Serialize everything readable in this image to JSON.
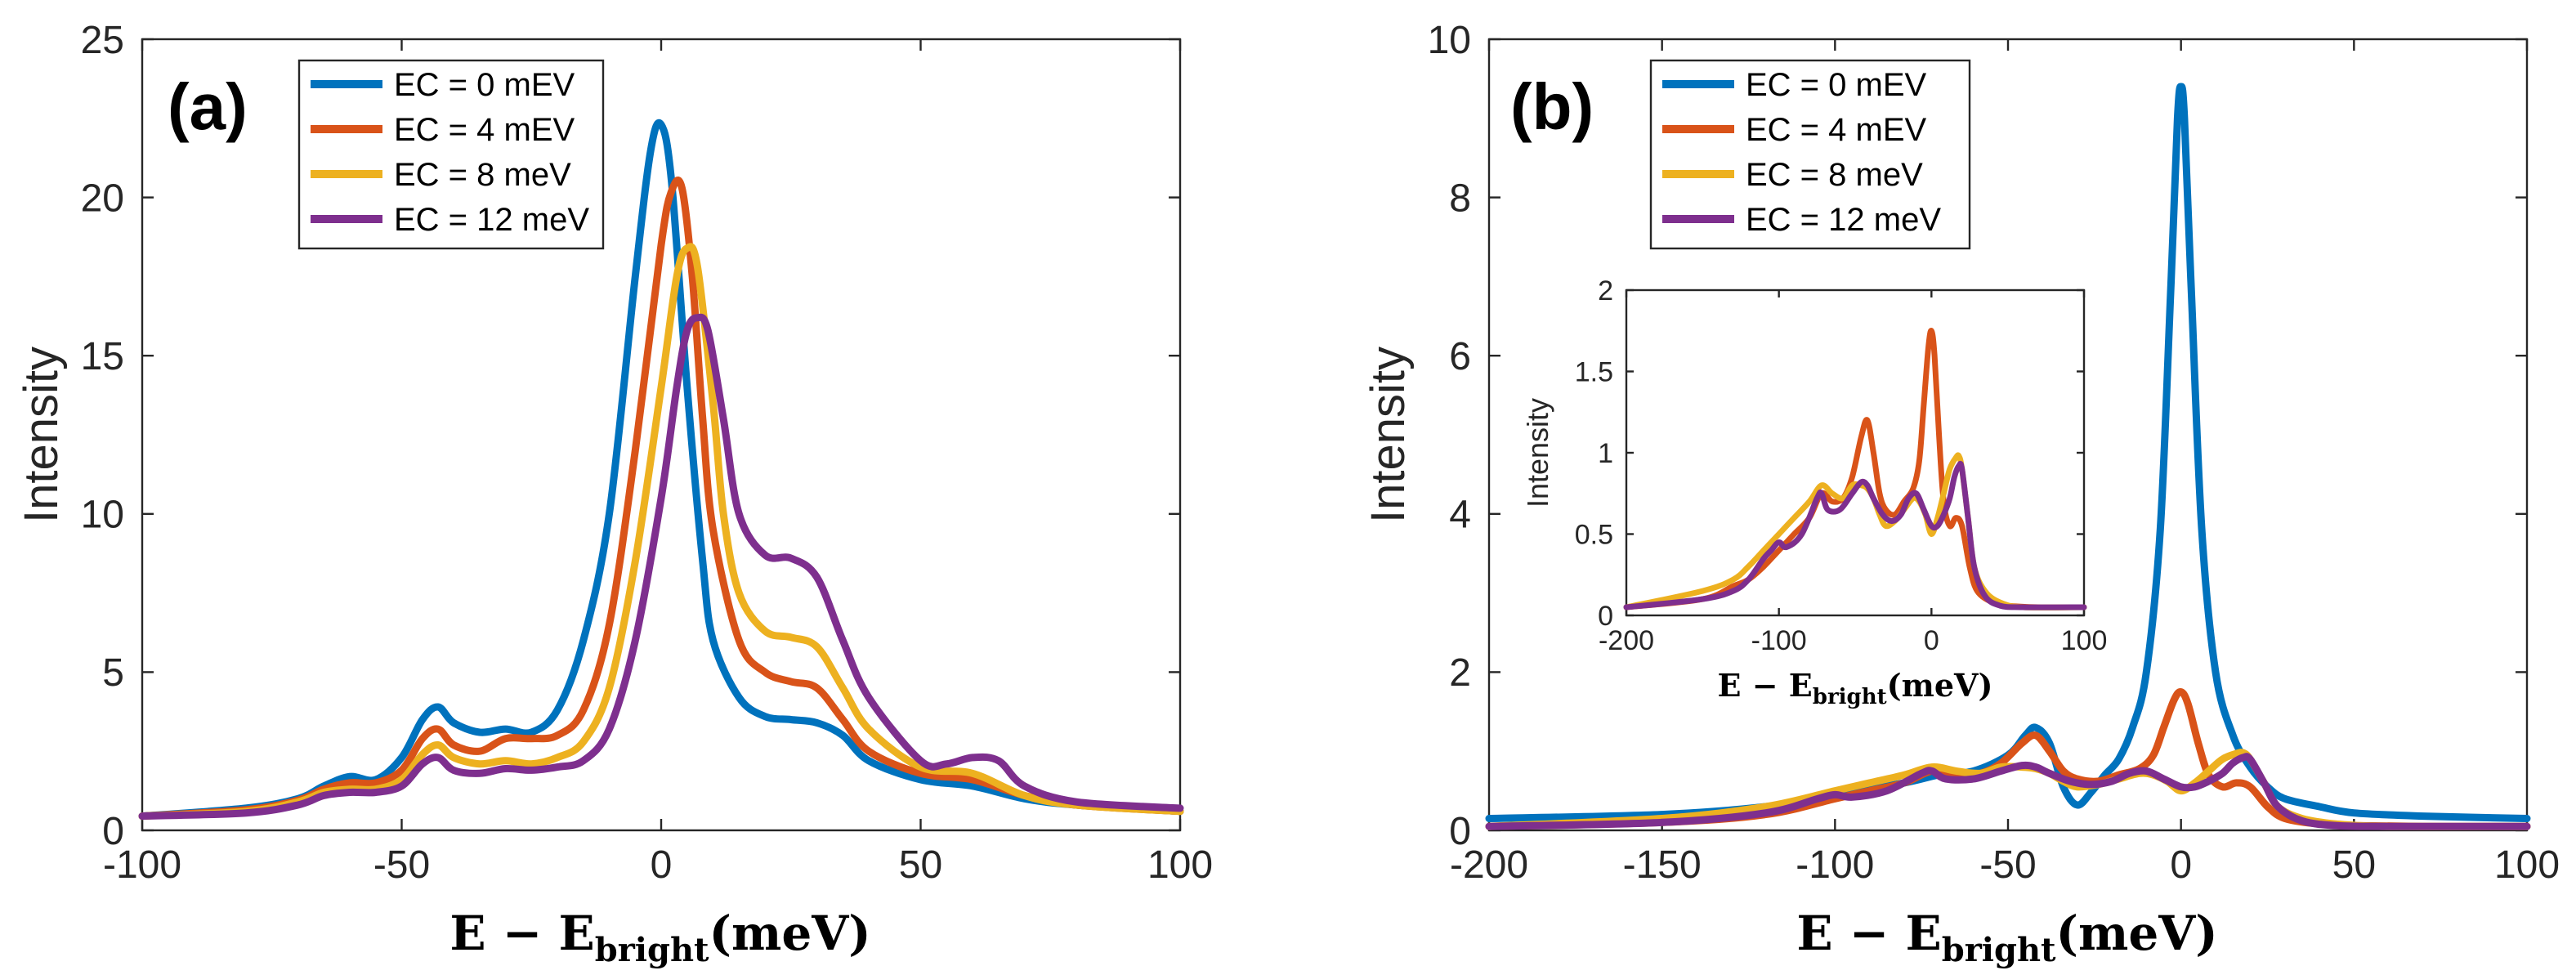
{
  "chart_data": [
    {
      "panel": "a",
      "type": "line",
      "title": "",
      "panel_label": "(a)",
      "ylabel": "Intensity",
      "xlabel": {
        "main": "E − E",
        "sub": "bright",
        "unit": "(meV)"
      },
      "xlim": [
        -100,
        100
      ],
      "ylim": [
        0,
        25
      ],
      "xticks": [
        -100,
        -50,
        0,
        50,
        100
      ],
      "yticks": [
        0,
        5,
        10,
        15,
        20,
        25
      ],
      "legend": [
        "EC = 0 mEV",
        "EC = 4 mEV",
        "EC = 8 meV",
        "EC = 12 meV"
      ],
      "legend_position": "top-left",
      "series": [
        {
          "name": "EC = 0 mEV",
          "color": "#0072BD",
          "x": [
            -100,
            -80,
            -70,
            -65,
            -60,
            -55,
            -50,
            -46,
            -43,
            -40,
            -35,
            -30,
            -25,
            -20,
            -15,
            -10,
            -5,
            -2,
            0,
            2,
            5,
            8,
            10,
            15,
            20,
            25,
            30,
            35,
            40,
            50,
            60,
            70,
            80,
            100
          ],
          "y": [
            0.45,
            0.7,
            1.0,
            1.4,
            1.7,
            1.6,
            2.3,
            3.5,
            3.9,
            3.4,
            3.1,
            3.2,
            3.1,
            3.8,
            6.0,
            10.0,
            17.5,
            21.5,
            22.3,
            20.5,
            14.0,
            8.5,
            6.0,
            4.2,
            3.6,
            3.5,
            3.4,
            3.0,
            2.2,
            1.6,
            1.4,
            1.0,
            0.8,
            0.6
          ]
        },
        {
          "name": "EC = 4 mEV",
          "color": "#D95319",
          "x": [
            -100,
            -80,
            -70,
            -65,
            -60,
            -55,
            -50,
            -46,
            -43,
            -40,
            -35,
            -30,
            -25,
            -20,
            -15,
            -10,
            -5,
            0,
            2,
            4,
            6,
            8,
            10,
            15,
            20,
            25,
            30,
            35,
            40,
            50,
            60,
            70,
            80,
            100
          ],
          "y": [
            0.45,
            0.65,
            0.95,
            1.3,
            1.5,
            1.5,
            1.9,
            2.9,
            3.2,
            2.7,
            2.5,
            2.9,
            2.9,
            3.0,
            3.8,
            6.5,
            12.0,
            18.5,
            20.2,
            20.3,
            17.5,
            13.0,
            9.5,
            6.0,
            5.0,
            4.7,
            4.5,
            3.5,
            2.5,
            1.8,
            1.6,
            1.1,
            0.8,
            0.6
          ]
        },
        {
          "name": "EC = 8 meV",
          "color": "#EDB120",
          "x": [
            -100,
            -80,
            -70,
            -65,
            -60,
            -55,
            -50,
            -46,
            -43,
            -40,
            -35,
            -30,
            -25,
            -20,
            -15,
            -10,
            -5,
            0,
            3,
            5,
            7,
            10,
            12,
            15,
            20,
            25,
            30,
            35,
            40,
            50,
            60,
            70,
            80,
            100
          ],
          "y": [
            0.45,
            0.6,
            0.9,
            1.2,
            1.3,
            1.3,
            1.6,
            2.4,
            2.7,
            2.3,
            2.1,
            2.2,
            2.1,
            2.3,
            2.8,
            4.5,
            8.5,
            14.0,
            17.5,
            18.4,
            17.8,
            13.5,
            10.0,
            7.5,
            6.3,
            6.1,
            5.8,
            4.5,
            3.2,
            2.0,
            1.8,
            1.1,
            0.8,
            0.6
          ]
        },
        {
          "name": "EC = 12 meV",
          "color": "#7E2F8E",
          "x": [
            -100,
            -80,
            -70,
            -65,
            -60,
            -55,
            -50,
            -46,
            -43,
            -40,
            -35,
            -30,
            -25,
            -20,
            -15,
            -10,
            -5,
            0,
            3,
            5,
            7,
            9,
            12,
            15,
            20,
            25,
            30,
            35,
            40,
            50,
            55,
            60,
            65,
            70,
            80,
            100
          ],
          "y": [
            0.45,
            0.55,
            0.8,
            1.1,
            1.2,
            1.2,
            1.4,
            2.1,
            2.3,
            1.9,
            1.8,
            1.95,
            1.9,
            2.0,
            2.2,
            3.2,
            6.0,
            10.5,
            14.0,
            15.8,
            16.2,
            15.8,
            13.0,
            10.0,
            8.7,
            8.6,
            8.0,
            6.0,
            4.2,
            2.2,
            2.1,
            2.3,
            2.2,
            1.4,
            0.9,
            0.7
          ]
        }
      ]
    },
    {
      "panel": "b",
      "type": "line",
      "title": "",
      "panel_label": "(b)",
      "ylabel": "Intensity",
      "xlabel": {
        "main": "E − E",
        "sub": "bright",
        "unit": "(meV)"
      },
      "xlim": [
        -200,
        100
      ],
      "ylim": [
        0,
        10
      ],
      "xticks": [
        -200,
        -150,
        -100,
        -50,
        0,
        50,
        100
      ],
      "yticks": [
        0,
        2,
        4,
        6,
        8,
        10
      ],
      "legend": [
        "EC = 0 mEV",
        "EC = 4 mEV",
        "EC = 8 meV",
        "EC = 12 meV"
      ],
      "legend_position": "top-left",
      "series": [
        {
          "name": "EC = 0 mEV",
          "color": "#0072BD",
          "x": [
            -200,
            -150,
            -120,
            -100,
            -80,
            -70,
            -60,
            -50,
            -45,
            -42,
            -38,
            -34,
            -30,
            -26,
            -22,
            -18,
            -14,
            -10,
            -6,
            -3,
            -1,
            0,
            1,
            3,
            6,
            10,
            15,
            20,
            25,
            30,
            40,
            50,
            70,
            100
          ],
          "y": [
            0.15,
            0.2,
            0.3,
            0.45,
            0.6,
            0.7,
            0.75,
            0.95,
            1.2,
            1.3,
            1.1,
            0.55,
            0.32,
            0.48,
            0.7,
            0.9,
            1.3,
            2.0,
            3.8,
            6.8,
            9.0,
            9.4,
            9.0,
            6.8,
            3.8,
            2.0,
            1.2,
            0.8,
            0.55,
            0.4,
            0.3,
            0.22,
            0.18,
            0.15
          ]
        },
        {
          "name": "EC = 4 mEV",
          "color": "#D95319",
          "x": [
            -200,
            -150,
            -120,
            -100,
            -90,
            -80,
            -72,
            -65,
            -58,
            -52,
            -46,
            -42,
            -38,
            -34,
            -30,
            -24,
            -18,
            -12,
            -8,
            -5,
            -2,
            0,
            2,
            5,
            8,
            12,
            16,
            20,
            25,
            30,
            40,
            50,
            70,
            100
          ],
          "y": [
            0.05,
            0.1,
            0.2,
            0.4,
            0.5,
            0.6,
            0.75,
            0.7,
            0.72,
            0.85,
            1.1,
            1.2,
            1.0,
            0.75,
            0.65,
            0.62,
            0.7,
            0.78,
            0.95,
            1.3,
            1.65,
            1.75,
            1.6,
            1.1,
            0.7,
            0.55,
            0.6,
            0.55,
            0.3,
            0.15,
            0.08,
            0.06,
            0.05,
            0.05
          ]
        },
        {
          "name": "EC = 8 meV",
          "color": "#EDB120",
          "x": [
            -200,
            -150,
            -120,
            -100,
            -90,
            -80,
            -72,
            -65,
            -58,
            -52,
            -46,
            -42,
            -38,
            -34,
            -30,
            -24,
            -18,
            -12,
            -8,
            -4,
            0,
            4,
            8,
            12,
            16,
            18,
            20,
            24,
            28,
            35,
            45,
            60,
            100
          ],
          "y": [
            0.05,
            0.15,
            0.3,
            0.5,
            0.6,
            0.7,
            0.8,
            0.75,
            0.72,
            0.8,
            0.8,
            0.78,
            0.72,
            0.62,
            0.55,
            0.58,
            0.65,
            0.72,
            0.7,
            0.62,
            0.5,
            0.6,
            0.75,
            0.9,
            0.97,
            0.98,
            0.9,
            0.6,
            0.3,
            0.15,
            0.08,
            0.05,
            0.05
          ]
        },
        {
          "name": "EC = 12 meV",
          "color": "#7E2F8E",
          "x": [
            -200,
            -150,
            -120,
            -105,
            -100,
            -95,
            -85,
            -75,
            -72,
            -68,
            -60,
            -52,
            -46,
            -42,
            -38,
            -32,
            -26,
            -20,
            -15,
            -10,
            -5,
            0,
            4,
            8,
            12,
            15,
            18,
            20,
            24,
            28,
            35,
            45,
            60,
            100
          ],
          "y": [
            0.05,
            0.1,
            0.22,
            0.4,
            0.45,
            0.42,
            0.5,
            0.72,
            0.75,
            0.65,
            0.65,
            0.75,
            0.82,
            0.8,
            0.72,
            0.62,
            0.58,
            0.62,
            0.72,
            0.75,
            0.65,
            0.55,
            0.55,
            0.62,
            0.72,
            0.85,
            0.92,
            0.9,
            0.6,
            0.3,
            0.12,
            0.06,
            0.05,
            0.05
          ]
        }
      ],
      "inset": {
        "type": "line",
        "ylabel": "Intensity",
        "xlabel": {
          "main": "E − E",
          "sub": "bright",
          "unit": "(meV)"
        },
        "xlim": [
          -200,
          100
        ],
        "ylim": [
          0,
          2
        ],
        "xticks": [
          -200,
          -100,
          0,
          100
        ],
        "yticks": [
          0,
          0.5,
          1,
          1.5,
          2
        ],
        "yticklabels": [
          "0",
          "0.5",
          "1",
          "1.5",
          "2"
        ],
        "series": [
          {
            "name": "EC = 4 mEV",
            "color": "#D95319",
            "x": [
              -200,
              -150,
              -130,
              -120,
              -110,
              -100,
              -90,
              -80,
              -72,
              -65,
              -58,
              -52,
              -46,
              -42,
              -38,
              -34,
              -30,
              -24,
              -18,
              -12,
              -8,
              -5,
              -2,
              0,
              2,
              5,
              8,
              12,
              16,
              20,
              25,
              30,
              40,
              50,
              70,
              100
            ],
            "y": [
              0.05,
              0.1,
              0.18,
              0.22,
              0.3,
              0.4,
              0.5,
              0.6,
              0.75,
              0.7,
              0.72,
              0.85,
              1.1,
              1.2,
              1.0,
              0.75,
              0.65,
              0.62,
              0.7,
              0.78,
              0.95,
              1.3,
              1.65,
              1.75,
              1.6,
              1.1,
              0.7,
              0.55,
              0.6,
              0.55,
              0.3,
              0.15,
              0.08,
              0.06,
              0.05,
              0.05
            ]
          },
          {
            "name": "EC = 8 meV",
            "color": "#EDB120",
            "x": [
              -200,
              -150,
              -130,
              -120,
              -110,
              -100,
              -90,
              -80,
              -72,
              -65,
              -58,
              -52,
              -46,
              -42,
              -38,
              -34,
              -30,
              -24,
              -18,
              -12,
              -8,
              -4,
              0,
              4,
              8,
              12,
              16,
              18,
              20,
              24,
              28,
              35,
              45,
              60,
              100
            ],
            "y": [
              0.05,
              0.15,
              0.22,
              0.3,
              0.4,
              0.5,
              0.6,
              0.7,
              0.8,
              0.75,
              0.72,
              0.8,
              0.8,
              0.78,
              0.72,
              0.62,
              0.55,
              0.58,
              0.65,
              0.72,
              0.7,
              0.62,
              0.5,
              0.6,
              0.75,
              0.9,
              0.97,
              0.98,
              0.9,
              0.6,
              0.3,
              0.15,
              0.08,
              0.05,
              0.05
            ]
          },
          {
            "name": "EC = 12 meV",
            "color": "#7E2F8E",
            "x": [
              -200,
              -150,
              -130,
              -120,
              -110,
              -105,
              -100,
              -95,
              -85,
              -75,
              -72,
              -68,
              -60,
              -52,
              -46,
              -42,
              -38,
              -32,
              -26,
              -20,
              -15,
              -10,
              -5,
              0,
              4,
              8,
              12,
              15,
              18,
              20,
              24,
              28,
              35,
              45,
              60,
              100
            ],
            "y": [
              0.05,
              0.1,
              0.15,
              0.22,
              0.35,
              0.4,
              0.45,
              0.42,
              0.5,
              0.72,
              0.75,
              0.65,
              0.65,
              0.75,
              0.82,
              0.8,
              0.72,
              0.62,
              0.58,
              0.62,
              0.72,
              0.75,
              0.65,
              0.55,
              0.55,
              0.62,
              0.72,
              0.85,
              0.92,
              0.9,
              0.6,
              0.3,
              0.12,
              0.06,
              0.05,
              0.05
            ]
          }
        ]
      }
    }
  ]
}
